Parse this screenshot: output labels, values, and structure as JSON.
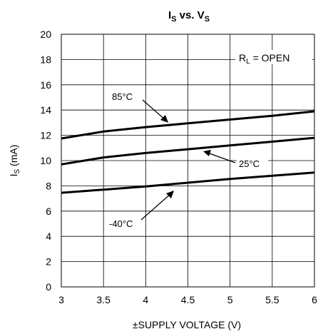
{
  "chart_data": {
    "type": "line",
    "title": {
      "main": "I",
      "main_sub": "S",
      "mid": " vs. V",
      "mid_sub": "S"
    },
    "xlabel": "±SUPPLY VOLTAGE (V)",
    "ylabel": {
      "main": "I",
      "sub": "S",
      "tail": " (mA)"
    },
    "xlim": [
      3,
      6
    ],
    "ylim": [
      0,
      20
    ],
    "x_ticks": [
      "3",
      "3.5",
      "4",
      "4.5",
      "5",
      "5.5",
      "6"
    ],
    "y_ticks": [
      "0",
      "2",
      "4",
      "6",
      "8",
      "10",
      "12",
      "14",
      "16",
      "18",
      "20"
    ],
    "grid": true,
    "legend_note": {
      "main": "R",
      "sub": "L",
      "tail": " = OPEN"
    },
    "series": [
      {
        "name": "85°C",
        "x": [
          3,
          3.5,
          4,
          4.5,
          5,
          5.5,
          6
        ],
        "y": [
          11.75,
          12.3,
          12.65,
          12.95,
          13.25,
          13.55,
          13.9
        ]
      },
      {
        "name": "25°C",
        "x": [
          3,
          3.5,
          4,
          4.5,
          5,
          5.5,
          6
        ],
        "y": [
          9.7,
          10.25,
          10.6,
          10.9,
          11.2,
          11.5,
          11.8
        ]
      },
      {
        "name": "-40°C",
        "x": [
          3,
          3.5,
          4,
          4.5,
          5,
          5.5,
          6
        ],
        "y": [
          7.45,
          7.7,
          7.95,
          8.25,
          8.55,
          8.8,
          9.05
        ]
      }
    ]
  }
}
